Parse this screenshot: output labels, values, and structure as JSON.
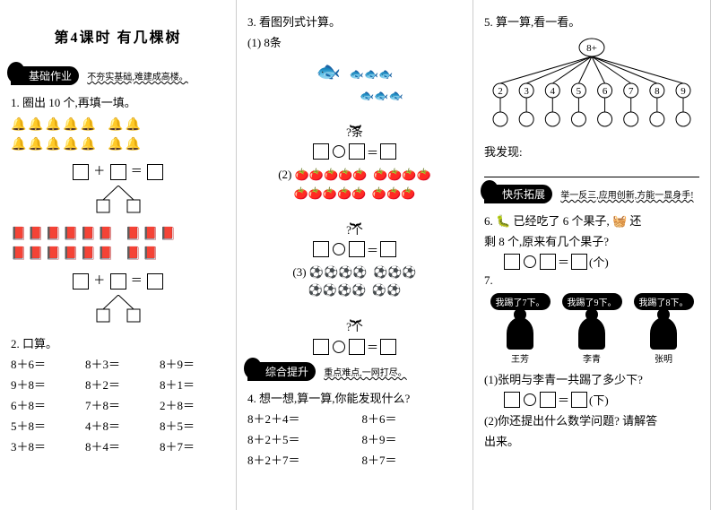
{
  "title": "第4课时  有几棵树",
  "sections": {
    "basic": {
      "badge": "基础作业",
      "sub": "不夯实基础,难建成高楼。"
    },
    "comp": {
      "badge": "综合提升",
      "sub": "重点难点,一网打尽。"
    },
    "ext": {
      "badge": "快乐拓展",
      "sub": "举一反三,应用创新,方能一显身手!"
    }
  },
  "q1": {
    "text": "1. 圈出 10 个,再填一填。"
  },
  "q2": {
    "text": "2. 口算。",
    "items": [
      "8＋6＝",
      "8＋3＝",
      "8＋9＝",
      "9＋8＝",
      "8＋2＝",
      "8＋1＝",
      "6＋8＝",
      "7＋8＝",
      "2＋8＝",
      "5＋8＝",
      "4＋8＝",
      "8＋5＝",
      "3＋8＝",
      "8＋4＝",
      "8＋7＝"
    ]
  },
  "q3": {
    "text": "3. 看图列式计算。",
    "p1_label": "(1)  8条",
    "p1_q": "?条",
    "p2_label": "(2)",
    "p2_q": "?个",
    "p3_label": "(3)",
    "p3_q": "?个"
  },
  "q4": {
    "text": "4. 想一想,算一算,你能发现什么?",
    "items": [
      "8＋2＋4＝",
      "8＋6＝",
      "8＋2＋5＝",
      "8＋9＝",
      "8＋2＋7＝",
      "8＋7＝"
    ]
  },
  "q5": {
    "text": "5. 算一算,看一看。",
    "top": "8+",
    "leaves": [
      "2",
      "3",
      "4",
      "5",
      "6",
      "7",
      "8",
      "9"
    ],
    "find": "我发现:"
  },
  "q6": {
    "text_a": "6. ",
    "text_b": "已经吃了 6 个果子,",
    "text_c": "还",
    "line2": "剩 8 个,原来有几个果子?",
    "unit": "(个)"
  },
  "q7": {
    "text": "7.",
    "bubbles": [
      "我踢了7下。",
      "我踢了9下。",
      "我踢了8下。"
    ],
    "names": [
      "王芳",
      "李青",
      "张明"
    ],
    "sub1": "(1)张明与李青一共踢了多少下?",
    "unit1": "(下)",
    "sub2": "(2)你还提出什么数学问题? 请解答",
    "sub2b": "出来。"
  }
}
